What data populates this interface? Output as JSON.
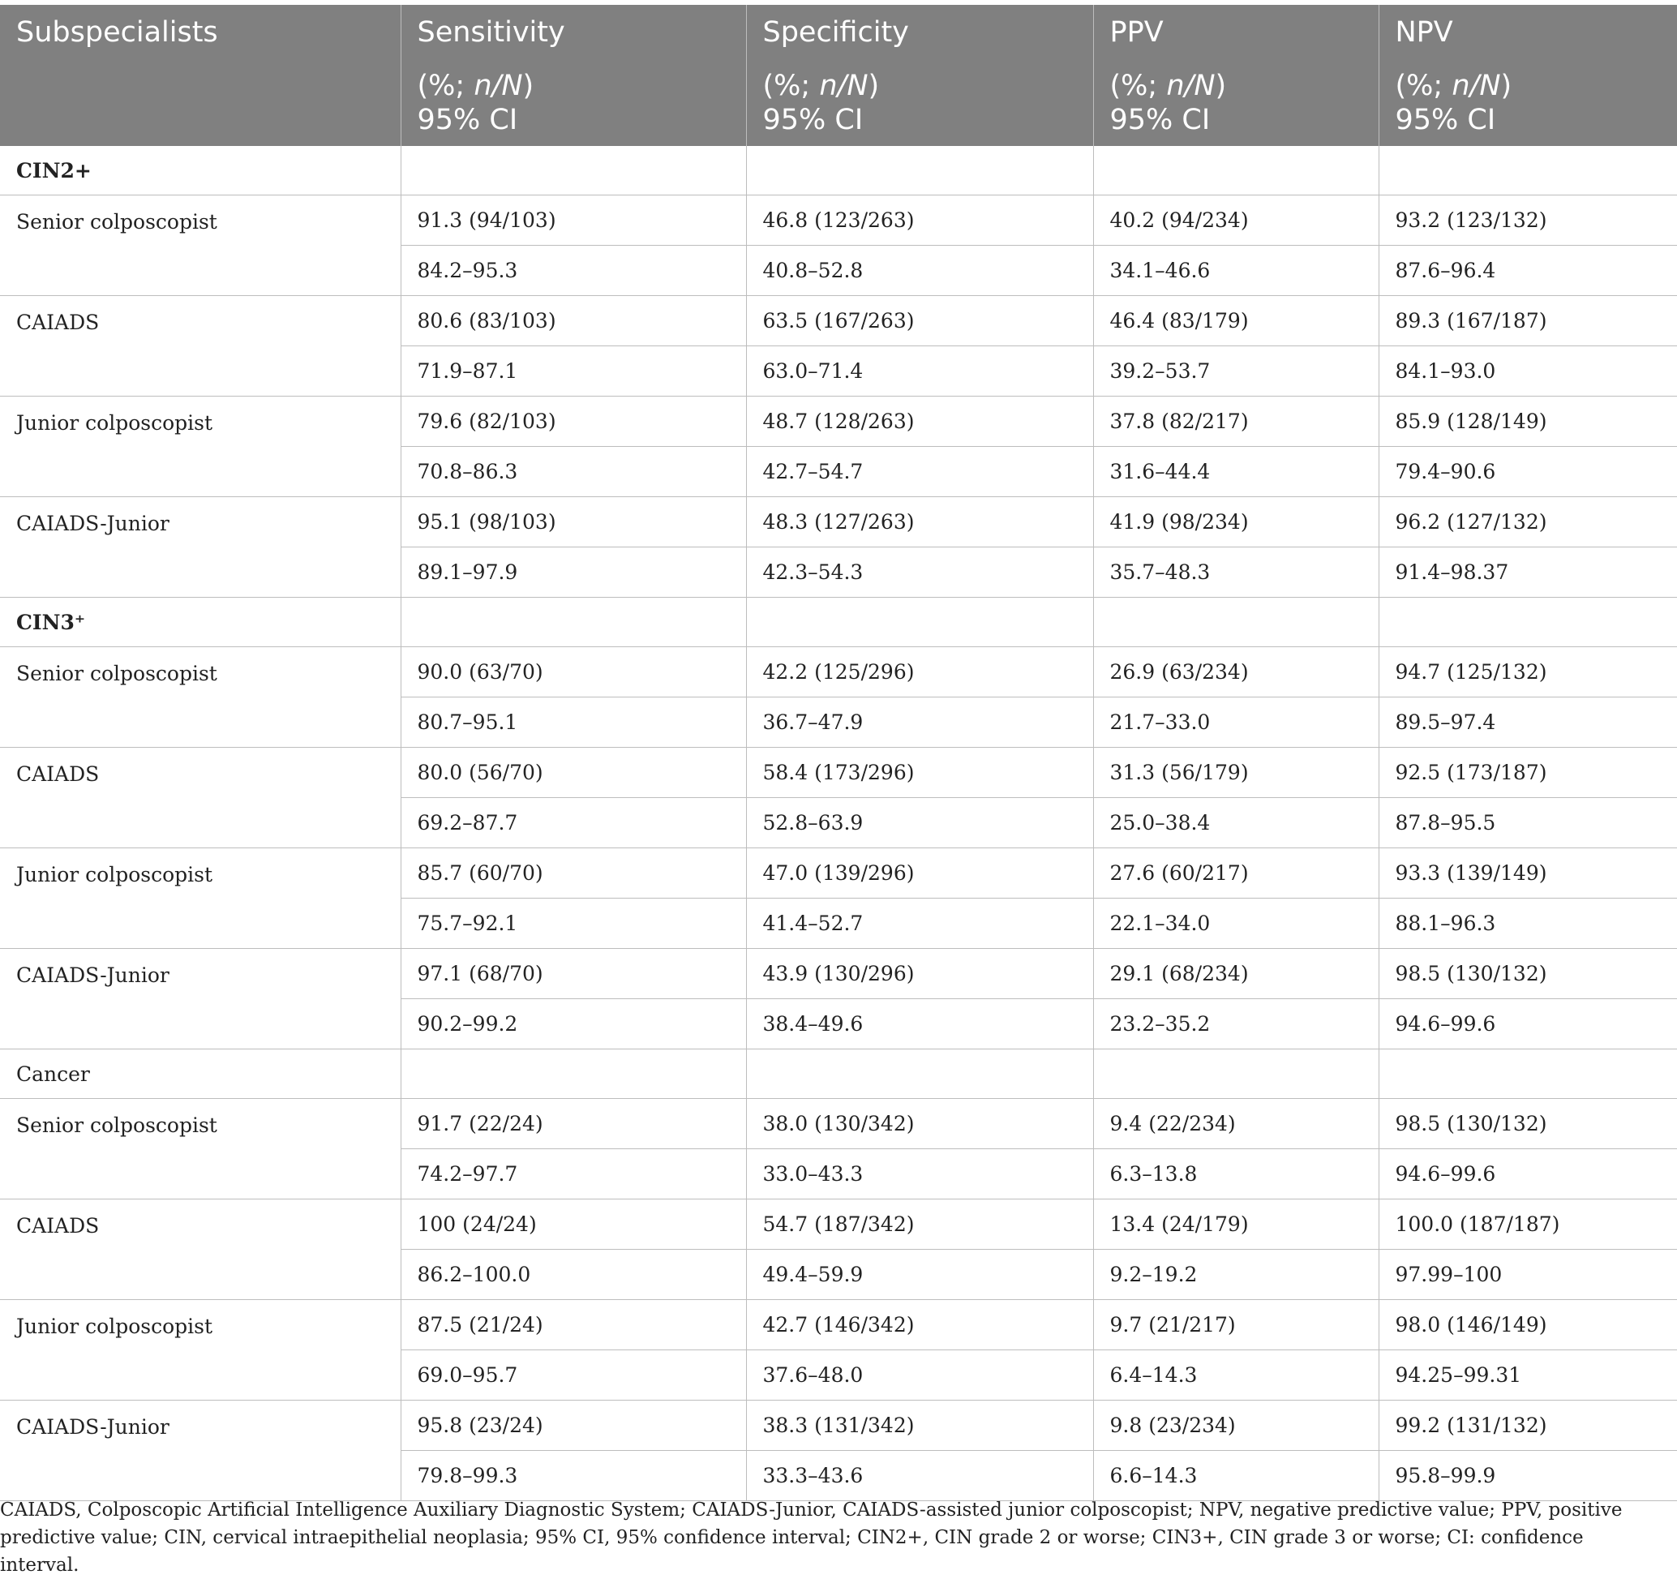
{
  "table": {
    "headers": [
      {
        "title": "Subspecialists",
        "sub1": "",
        "sub2": ""
      },
      {
        "title": "Sensitivity",
        "sub1": "(%; n/N)",
        "sub2": "95% CI"
      },
      {
        "title": "Specificity",
        "sub1": "(%; n/N)",
        "sub2": "95% CI"
      },
      {
        "title": "PPV",
        "sub1": "(%; n/N)",
        "sub2": "95% CI"
      },
      {
        "title": "NPV",
        "sub1": "(%; n/N)",
        "sub2": "95% CI"
      }
    ],
    "sections": [
      {
        "name": "CIN2+",
        "bold": true,
        "rows": [
          {
            "label": "Senior colposcopist",
            "values": [
              "91.3 (94/103)",
              "46.8 (123/263)",
              "40.2 (94/234)",
              "93.2 (123/132)"
            ],
            "ci": [
              "84.2–95.3",
              "40.8–52.8",
              "34.1–46.6",
              "87.6–96.4"
            ]
          },
          {
            "label": "CAIADS",
            "values": [
              "80.6 (83/103)",
              "63.5 (167/263)",
              "46.4 (83/179)",
              "89.3 (167/187)"
            ],
            "ci": [
              "71.9–87.1",
              "63.0–71.4",
              "39.2–53.7",
              "84.1–93.0"
            ]
          },
          {
            "label": "Junior colposcopist",
            "values": [
              "79.6 (82/103)",
              "48.7 (128/263)",
              "37.8 (82/217)",
              "85.9 (128/149)"
            ],
            "ci": [
              "70.8–86.3",
              "42.7–54.7",
              "31.6–44.4",
              "79.4–90.6"
            ]
          },
          {
            "label": "CAIADS-Junior",
            "values": [
              "95.1 (98/103)",
              "48.3 (127/263)",
              "41.9 (98/234)",
              "96.2 (127/132)"
            ],
            "ci": [
              "89.1–97.9",
              "42.3–54.3",
              "35.7–48.3",
              "91.4–98.37"
            ]
          }
        ]
      },
      {
        "name": "CIN3⁺",
        "bold": true,
        "rows": [
          {
            "label": "Senior colposcopist",
            "values": [
              "90.0 (63/70)",
              "42.2 (125/296)",
              "26.9 (63/234)",
              "94.7 (125/132)"
            ],
            "ci": [
              "80.7–95.1",
              "36.7–47.9",
              "21.7–33.0",
              "89.5–97.4"
            ]
          },
          {
            "label": "CAIADS",
            "values": [
              "80.0 (56/70)",
              "58.4 (173/296)",
              "31.3 (56/179)",
              "92.5 (173/187)"
            ],
            "ci": [
              "69.2–87.7",
              "52.8–63.9",
              "25.0–38.4",
              "87.8–95.5"
            ]
          },
          {
            "label": "Junior colposcopist",
            "values": [
              "85.7 (60/70)",
              "47.0 (139/296)",
              "27.6 (60/217)",
              "93.3 (139/149)"
            ],
            "ci": [
              "75.7–92.1",
              "41.4–52.7",
              "22.1–34.0",
              "88.1–96.3"
            ]
          },
          {
            "label": "CAIADS-Junior",
            "values": [
              "97.1 (68/70)",
              "43.9 (130/296)",
              "29.1 (68/234)",
              "98.5 (130/132)"
            ],
            "ci": [
              "90.2–99.2",
              "38.4–49.6",
              "23.2–35.2",
              "94.6–99.6"
            ]
          }
        ]
      },
      {
        "name": "Cancer",
        "bold": false,
        "rows": [
          {
            "label": "Senior colposcopist",
            "values": [
              "91.7 (22/24)",
              "38.0 (130/342)",
              "9.4 (22/234)",
              "98.5 (130/132)"
            ],
            "ci": [
              "74.2–97.7",
              "33.0–43.3",
              "6.3–13.8",
              "94.6–99.6"
            ]
          },
          {
            "label": "CAIADS",
            "values": [
              "100 (24/24)",
              "54.7 (187/342)",
              "13.4 (24/179)",
              "100.0 (187/187)"
            ],
            "ci": [
              "86.2–100.0",
              "49.4–59.9",
              "9.2–19.2",
              "97.99–100"
            ]
          },
          {
            "label": "Junior colposcopist",
            "values": [
              "87.5 (21/24)",
              "42.7 (146/342)",
              "9.7 (21/217)",
              "98.0 (146/149)"
            ],
            "ci": [
              "69.0–95.7",
              "37.6–48.0",
              "6.4–14.3",
              "94.25–99.31"
            ]
          },
          {
            "label": "CAIADS-Junior",
            "values": [
              "95.8 (23/24)",
              "38.3 (131/342)",
              "9.8 (23/234)",
              "99.2 (131/132)"
            ],
            "ci": [
              "79.8–99.3",
              "33.3–43.6",
              "6.6–14.3",
              "95.8–99.9"
            ]
          }
        ]
      }
    ]
  },
  "footnote": "CAIADS, Colposcopic Artificial Intelligence Auxiliary Diagnostic System; CAIADS-Junior, CAIADS-assisted junior colposcopist; NPV, negative predictive value; PPV, positive predictive value; CIN, cervical intraepithelial neoplasia; 95% CI, 95% confidence interval; CIN2+, CIN grade 2 or worse; CIN3+, CIN grade 3 or worse; CI: confidence interval."
}
